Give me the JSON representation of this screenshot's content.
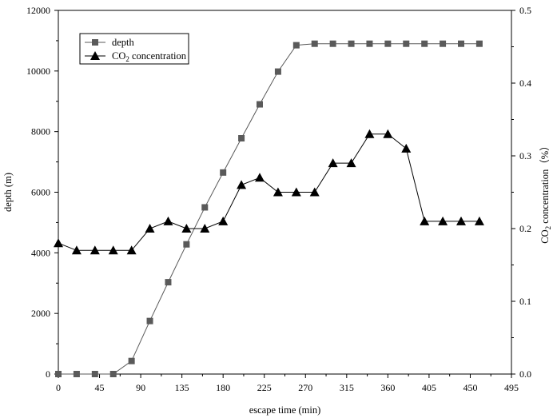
{
  "chart_data": {
    "type": "line",
    "title": "",
    "xlabel": "escape time (min)",
    "ylabel": "depth (m)",
    "y2label_parts": [
      "CO",
      "2",
      " concentration（%）"
    ],
    "xlim": [
      0,
      495
    ],
    "ylim": [
      0,
      12000
    ],
    "y2lim": [
      0,
      0.5
    ],
    "xticks": [
      0,
      45,
      90,
      135,
      180,
      225,
      270,
      315,
      360,
      405,
      450,
      495
    ],
    "yticks": [
      0,
      2000,
      4000,
      6000,
      8000,
      10000,
      12000
    ],
    "y2ticks": [
      "0.0",
      "0.1",
      "0.2",
      "0.3",
      "0.4",
      "0.5"
    ],
    "grid": false,
    "legend_position": "top-left",
    "legend_entries": {
      "depth": "depth",
      "co2_parts": [
        "CO",
        "2",
        " concentration"
      ]
    },
    "x": [
      0,
      20,
      40,
      60,
      80,
      100,
      120,
      140,
      160,
      180,
      200,
      220,
      240,
      260,
      280,
      300,
      320,
      340,
      360,
      380,
      400,
      420,
      440,
      460
    ],
    "series": [
      {
        "name": "depth",
        "axis": "left",
        "marker": "square",
        "color": "#5a5a5a",
        "values": [
          0,
          0,
          0,
          0,
          430,
          1750,
          3030,
          4280,
          5500,
          6650,
          7780,
          8900,
          9980,
          10850,
          10900,
          10900,
          10900,
          10900,
          10900,
          10900,
          10900,
          10900,
          10900,
          10900
        ]
      },
      {
        "name": "CO2 concentration",
        "axis": "right",
        "marker": "triangle",
        "color": "#000000",
        "values": [
          0.18,
          0.17,
          0.17,
          0.17,
          0.17,
          0.2,
          0.21,
          0.2,
          0.2,
          0.21,
          0.26,
          0.27,
          0.25,
          0.25,
          0.25,
          0.29,
          0.29,
          0.33,
          0.33,
          0.31,
          0.21,
          0.21,
          0.21,
          0.21
        ]
      }
    ]
  }
}
